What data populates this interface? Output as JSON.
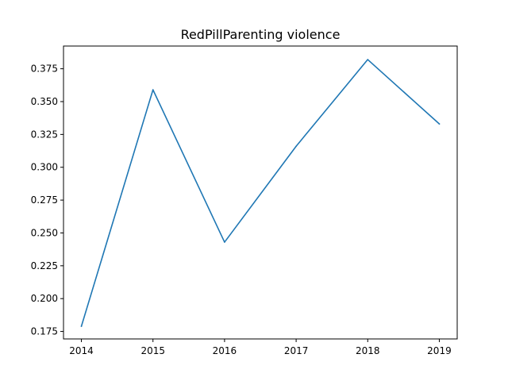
{
  "chart_data": {
    "type": "line",
    "title": "RedPillParenting violence",
    "xlabel": "",
    "ylabel": "",
    "x": [
      2014,
      2015,
      2016,
      2017,
      2018,
      2019
    ],
    "series": [
      {
        "values": [
          0.179,
          0.359,
          0.243,
          0.316,
          0.382,
          0.333
        ]
      }
    ],
    "x_ticks": [
      2014,
      2015,
      2016,
      2017,
      2018,
      2019
    ],
    "x_tick_labels": [
      "2014",
      "2015",
      "2016",
      "2017",
      "2018",
      "2019"
    ],
    "y_ticks": [
      0.175,
      0.2,
      0.225,
      0.25,
      0.275,
      0.3,
      0.325,
      0.35,
      0.375
    ],
    "y_tick_labels": [
      "0.175",
      "0.200",
      "0.225",
      "0.250",
      "0.275",
      "0.300",
      "0.325",
      "0.350",
      "0.375"
    ],
    "xlim": [
      2013.75,
      2019.25
    ],
    "ylim": [
      0.1693,
      0.3923
    ],
    "grid": false,
    "legend": "none",
    "colors": {
      "line": "#1f77b4",
      "axes": "#000000",
      "background": "#ffffff"
    }
  }
}
